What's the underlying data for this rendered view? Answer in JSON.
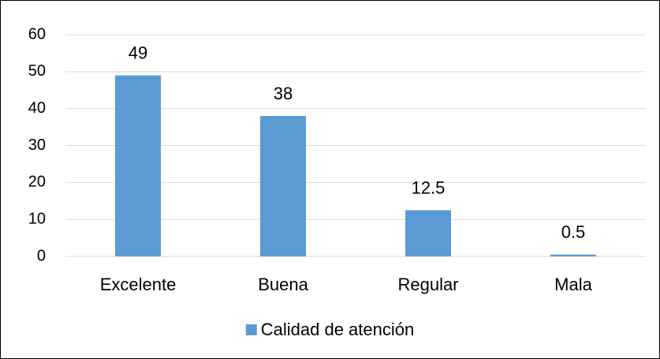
{
  "chart_data": {
    "type": "bar",
    "categories": [
      "Excelente",
      "Buena",
      "Regular",
      "Mala"
    ],
    "series": [
      {
        "name": "Calidad de atención",
        "color": "#5b9bd5",
        "values": [
          49,
          38,
          12.5,
          0.5
        ]
      }
    ],
    "ylim": [
      0,
      60
    ],
    "yticks": [
      0,
      10,
      20,
      30,
      40,
      50,
      60
    ],
    "grid": true,
    "legend": "bottom",
    "data_labels": true
  }
}
